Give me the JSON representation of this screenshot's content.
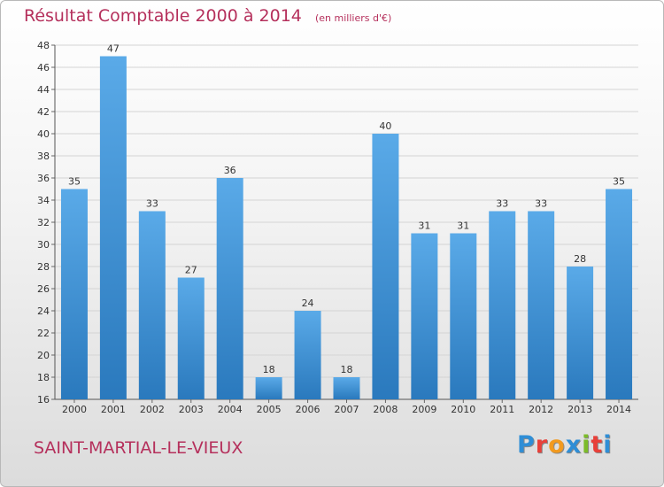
{
  "title": "Résultat Comptable 2000 à 2014",
  "subtitle": "(en milliers d'€)",
  "town": "SAINT-MARTIAL-LE-VIEUX",
  "logo": {
    "letters": [
      "P",
      "r",
      "o",
      "x",
      "i",
      "t",
      "i"
    ],
    "colors": [
      "#2f8ed6",
      "#e8403a",
      "#f29a1f",
      "#2f8ed6",
      "#7cbb2a",
      "#e8403a",
      "#2f8ed6"
    ]
  },
  "colors": {
    "bar_light": "#5aaae8",
    "bar_dark": "#2a79bd",
    "title": "#b5305c"
  },
  "chart_data": {
    "type": "bar",
    "categories": [
      "2000",
      "2001",
      "2002",
      "2003",
      "2004",
      "2005",
      "2006",
      "2007",
      "2008",
      "2009",
      "2010",
      "2011",
      "2012",
      "2013",
      "2014"
    ],
    "values": [
      35,
      47,
      33,
      27,
      36,
      18,
      24,
      18,
      40,
      31,
      31,
      33,
      33,
      28,
      35
    ],
    "title": "Résultat Comptable 2000 à 2014",
    "xlabel": "",
    "ylabel": "",
    "ylim": [
      16,
      48
    ],
    "yticks": [
      16,
      18,
      20,
      22,
      24,
      26,
      28,
      30,
      32,
      34,
      36,
      38,
      40,
      42,
      44,
      46,
      48
    ],
    "grid": true,
    "data_labels": true
  }
}
